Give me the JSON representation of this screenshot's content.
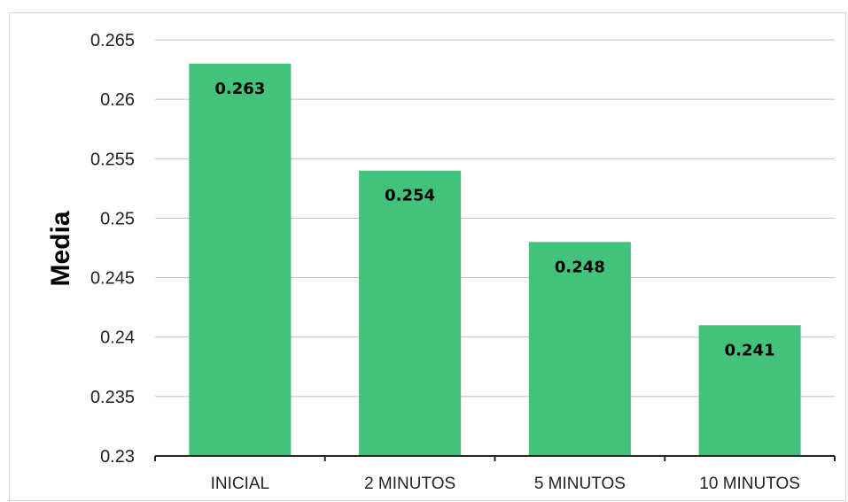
{
  "chart_data": {
    "type": "bar",
    "categories": [
      "INICIAL",
      "2 MINUTOS",
      "5 MINUTOS",
      "10 MINUTOS"
    ],
    "values": [
      0.263,
      0.254,
      0.248,
      0.241
    ],
    "data_labels": [
      "0.263",
      "0.254",
      "0.248",
      "0.241"
    ],
    "title": "",
    "xlabel": "",
    "ylabel": "Media",
    "ylim": [
      0.23,
      0.265
    ],
    "yticks": [
      0.23,
      0.235,
      0.24,
      0.245,
      0.25,
      0.255,
      0.26,
      0.265
    ],
    "ytick_labels": [
      "0.23",
      "0.235",
      "0.24",
      "0.245",
      "0.25",
      "0.255",
      "0.26",
      "0.265"
    ],
    "grid": true,
    "legend": "none",
    "bar_color": "#42c27a",
    "grid_color": "#bfbfbf",
    "axis_color": "#262626"
  }
}
